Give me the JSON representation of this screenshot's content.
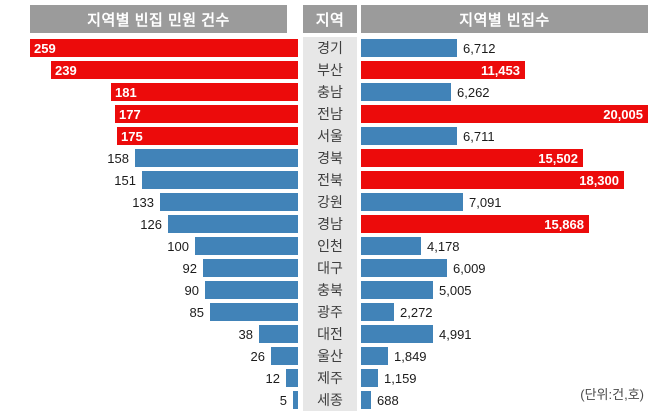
{
  "header": {
    "left_title": "지역별 빈집 민원 건수",
    "middle_title": "지역",
    "right_title": "지역별 빈집수"
  },
  "unit_note": "(단위:건,호)",
  "colors": {
    "red": "#ec0b0b",
    "blue": "#4183b8",
    "header_bg": "#9b9b9b",
    "strip_bg": "#e7e7e7"
  },
  "chart_data": {
    "type": "bar",
    "layout": "horizontal-bidirectional",
    "grid": false,
    "legend_position": "none",
    "categories": [
      "경기",
      "부산",
      "충남",
      "전남",
      "서울",
      "경북",
      "전북",
      "강원",
      "경남",
      "인천",
      "대구",
      "충북",
      "광주",
      "대전",
      "울산",
      "제주",
      "세종"
    ],
    "series": [
      {
        "name": "지역별 빈집 민원 건수",
        "side": "left",
        "axis_max": 259,
        "values": [
          259,
          239,
          181,
          177,
          175,
          158,
          151,
          133,
          126,
          100,
          92,
          90,
          85,
          38,
          26,
          12,
          5
        ],
        "labels": [
          "259",
          "239",
          "181",
          "177",
          "175",
          "158",
          "151",
          "133",
          "126",
          "100",
          "92",
          "90",
          "85",
          "38",
          "26",
          "12",
          "5"
        ],
        "bar_colors": [
          "red",
          "red",
          "red",
          "red",
          "red",
          "blue",
          "blue",
          "blue",
          "blue",
          "blue",
          "blue",
          "blue",
          "blue",
          "blue",
          "blue",
          "blue",
          "blue"
        ]
      },
      {
        "name": "지역별 빈집수",
        "side": "right",
        "axis_max": 20005,
        "values": [
          6712,
          11453,
          6262,
          20005,
          6711,
          15502,
          18300,
          7091,
          15868,
          4178,
          6009,
          5005,
          2272,
          4991,
          1849,
          1159,
          688
        ],
        "labels": [
          "6,712",
          "11,453",
          "6,262",
          "20,005",
          "6,711",
          "15,502",
          "18,300",
          "7,091",
          "15,868",
          "4,178",
          "6,009",
          "5,005",
          "2,272",
          "4,991",
          "1,849",
          "1,159",
          "688"
        ],
        "bar_colors": [
          "blue",
          "red",
          "blue",
          "red",
          "blue",
          "red",
          "red",
          "blue",
          "red",
          "blue",
          "blue",
          "blue",
          "blue",
          "blue",
          "blue",
          "blue",
          "blue"
        ]
      }
    ]
  }
}
